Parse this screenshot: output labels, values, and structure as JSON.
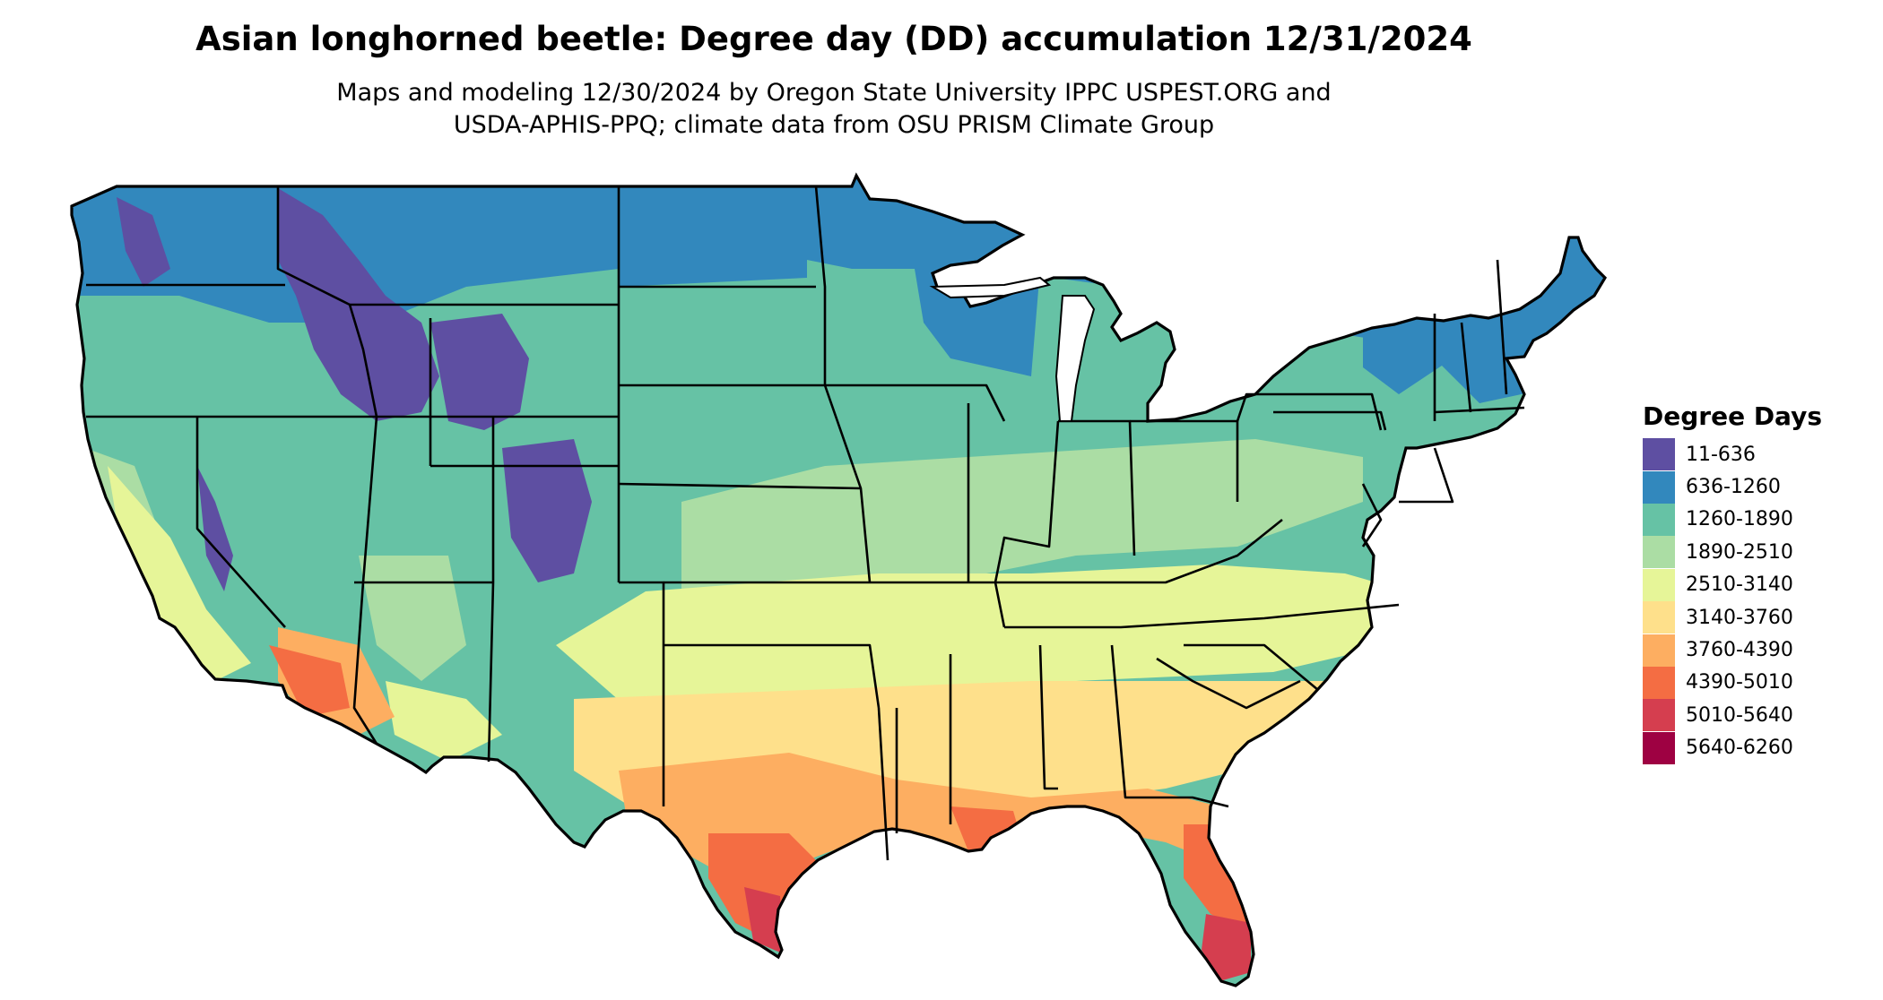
{
  "title": "Asian longhorned beetle: Degree day (DD) accumulation 12/31/2024",
  "subtitle_line1": "Maps and modeling 12/30/2024 by Oregon State University IPPC USPEST.ORG and",
  "subtitle_line2": "USDA-APHIS-PPQ; climate data from OSU PRISM Climate Group",
  "legend": {
    "title": "Degree Days",
    "items": [
      {
        "label": "11-636",
        "color": "#5e4fa2"
      },
      {
        "label": "636-1260",
        "color": "#3288bd"
      },
      {
        "label": "1260-1890",
        "color": "#66c2a5"
      },
      {
        "label": "1890-2510",
        "color": "#abdda4"
      },
      {
        "label": "2510-3140",
        "color": "#e6f598"
      },
      {
        "label": "3140-3760",
        "color": "#fee08b"
      },
      {
        "label": "3760-4390",
        "color": "#fdae61"
      },
      {
        "label": "4390-5010",
        "color": "#f46d43"
      },
      {
        "label": "5010-5640",
        "color": "#d53e4f"
      },
      {
        "label": "5640-6260",
        "color": "#9e0142"
      }
    ]
  },
  "map_subject": "Contiguous United States with state boundaries"
}
